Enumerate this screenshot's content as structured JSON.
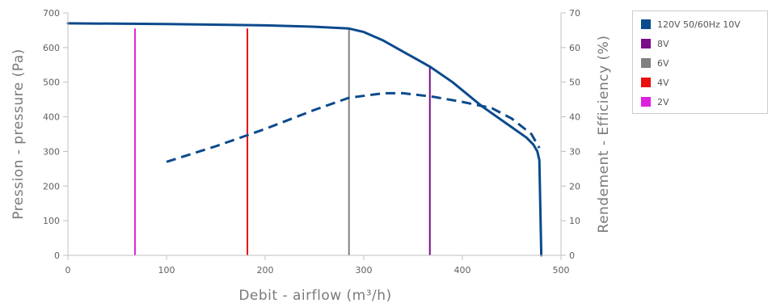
{
  "chart_data": {
    "type": "line",
    "xlabel": "Debit - airflow (m³/h)",
    "ylabel": "Pression - pressure (Pa)",
    "y2label": "Rendement - Efficiency (%)",
    "xlim": [
      0,
      500
    ],
    "ylim": [
      0,
      700
    ],
    "y2lim": [
      0,
      70
    ],
    "x_ticks": [
      0,
      100,
      200,
      300,
      400,
      500
    ],
    "y_ticks": [
      0,
      100,
      200,
      300,
      400,
      500,
      600,
      700
    ],
    "y2_ticks": [
      0,
      10,
      20,
      30,
      40,
      50,
      60,
      70
    ],
    "grid": false,
    "legend_position": "right",
    "legend": [
      {
        "label": "120V 50/60Hz 10V",
        "color": "#0b4a8c"
      },
      {
        "label": "8V",
        "color": "#7b0e8a"
      },
      {
        "label": "6V",
        "color": "#808080"
      },
      {
        "label": "4V",
        "color": "#e81010"
      },
      {
        "label": "2V",
        "color": "#e020e0"
      }
    ],
    "pressure_curve": {
      "name": "120V 50/60Hz 10V",
      "color": "#0b4a8c",
      "axis": "left",
      "style": "solid",
      "points": [
        [
          0,
          670
        ],
        [
          100,
          668
        ],
        [
          200,
          664
        ],
        [
          250,
          660
        ],
        [
          285,
          655
        ],
        [
          300,
          645
        ],
        [
          320,
          620
        ],
        [
          345,
          580
        ],
        [
          367,
          545
        ],
        [
          390,
          500
        ],
        [
          420,
          430
        ],
        [
          445,
          380
        ],
        [
          465,
          340
        ],
        [
          472,
          320
        ],
        [
          476,
          300
        ],
        [
          478,
          275
        ],
        [
          480,
          0
        ]
      ]
    },
    "efficiency_curve": {
      "name": "120V 50/60Hz 10V efficiency",
      "color": "#0b4a8c",
      "axis": "right",
      "style": "dashed",
      "points": [
        [
          100,
          27
        ],
        [
          150,
          31.5
        ],
        [
          200,
          36.5
        ],
        [
          250,
          42
        ],
        [
          285,
          45.5
        ],
        [
          320,
          46.8
        ],
        [
          340,
          46.8
        ],
        [
          370,
          45.8
        ],
        [
          400,
          44.3
        ],
        [
          430,
          42.5
        ],
        [
          450,
          39.5
        ],
        [
          470,
          35
        ],
        [
          478,
          31
        ]
      ]
    },
    "voltage_lines": [
      {
        "name": "2V",
        "x": 68,
        "ymax": 655,
        "color": "#e020e0"
      },
      {
        "name": "4V",
        "x": 182,
        "ymax": 655,
        "color": "#e81010"
      },
      {
        "name": "6V",
        "x": 285,
        "ymax": 655,
        "color": "#808080"
      },
      {
        "name": "8V",
        "x": 367,
        "ymax": 545,
        "color": "#7b0e8a"
      }
    ]
  }
}
